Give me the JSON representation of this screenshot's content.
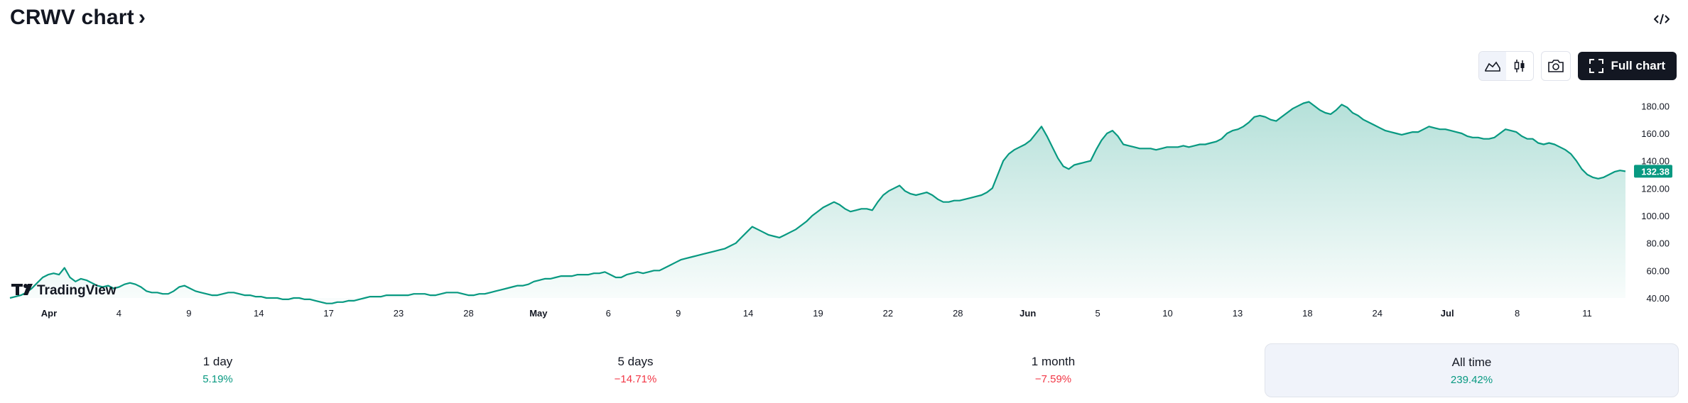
{
  "header": {
    "title": "CRWV chart",
    "chevron": "›"
  },
  "toolbar": {
    "area_icon": "area-chart-icon",
    "candle_icon": "candlestick-icon",
    "camera_icon": "camera-icon",
    "full_chart_label": "Full chart",
    "embed_icon": "code-embed-icon"
  },
  "watermark": {
    "text": "TradingView"
  },
  "colors": {
    "line": "#089981",
    "price_badge": "#089981",
    "positive": "#089981",
    "negative": "#f23645"
  },
  "periods": [
    {
      "label": "1 day",
      "value": "5.19%",
      "positive": true
    },
    {
      "label": "5 days",
      "value": "−14.71%",
      "positive": false
    },
    {
      "label": "1 month",
      "value": "−7.59%",
      "positive": false
    },
    {
      "label": "All time",
      "value": "239.42%",
      "positive": true,
      "active": true
    }
  ],
  "chart_data": {
    "type": "area",
    "ylim": [
      40,
      190
    ],
    "y_ticks": [
      "40.00",
      "60.00",
      "80.00",
      "100.00",
      "120.00",
      "140.00",
      "160.00",
      "180.00"
    ],
    "x_ticks": [
      {
        "label": "Apr",
        "bold": true
      },
      {
        "label": "4"
      },
      {
        "label": "9"
      },
      {
        "label": "14"
      },
      {
        "label": "17"
      },
      {
        "label": "23"
      },
      {
        "label": "28"
      },
      {
        "label": "May",
        "bold": true
      },
      {
        "label": "6"
      },
      {
        "label": "9"
      },
      {
        "label": "14"
      },
      {
        "label": "19"
      },
      {
        "label": "22"
      },
      {
        "label": "28"
      },
      {
        "label": "Jun",
        "bold": true
      },
      {
        "label": "5"
      },
      {
        "label": "10"
      },
      {
        "label": "13"
      },
      {
        "label": "18"
      },
      {
        "label": "24"
      },
      {
        "label": "Jul",
        "bold": true
      },
      {
        "label": "8"
      },
      {
        "label": "11"
      }
    ],
    "last_price": "132.38",
    "values": [
      40,
      41,
      42,
      44,
      47,
      51,
      55,
      57,
      58,
      57,
      62,
      55,
      52,
      54,
      53,
      51,
      49,
      48,
      49,
      47,
      48,
      50,
      51,
      50,
      48,
      45,
      44,
      44,
      43,
      43,
      45,
      48,
      49,
      47,
      45,
      44,
      43,
      42,
      42,
      43,
      44,
      44,
      43,
      42,
      42,
      41,
      41,
      40,
      40,
      40,
      39,
      39,
      40,
      40,
      39,
      39,
      38,
      37,
      36,
      36,
      37,
      37,
      38,
      38,
      39,
      40,
      41,
      41,
      41,
      42,
      42,
      42,
      42,
      42,
      43,
      43,
      43,
      42,
      42,
      43,
      44,
      44,
      44,
      43,
      42,
      42,
      43,
      43,
      44,
      45,
      46,
      47,
      48,
      49,
      49,
      50,
      52,
      53,
      54,
      54,
      55,
      56,
      56,
      56,
      57,
      57,
      57,
      58,
      58,
      59,
      57,
      55,
      55,
      57,
      58,
      59,
      58,
      59,
      60,
      60,
      62,
      64,
      66,
      68,
      69,
      70,
      71,
      72,
      73,
      74,
      75,
      76,
      78,
      80,
      84,
      88,
      92,
      90,
      88,
      86,
      85,
      84,
      86,
      88,
      90,
      93,
      96,
      100,
      103,
      106,
      108,
      110,
      108,
      105,
      103,
      104,
      105,
      105,
      104,
      110,
      115,
      118,
      120,
      122,
      118,
      116,
      115,
      116,
      117,
      115,
      112,
      110,
      110,
      111,
      111,
      112,
      113,
      114,
      115,
      117,
      120,
      130,
      140,
      145,
      148,
      150,
      152,
      155,
      160,
      165,
      158,
      150,
      142,
      136,
      134,
      137,
      138,
      139,
      140,
      148,
      155,
      160,
      162,
      158,
      152,
      151,
      150,
      149,
      149,
      149,
      148,
      149,
      150,
      150,
      150,
      151,
      150,
      151,
      152,
      152,
      153,
      154,
      156,
      160,
      162,
      163,
      165,
      168,
      172,
      173,
      172,
      170,
      169,
      172,
      175,
      178,
      180,
      182,
      183,
      180,
      177,
      175,
      174,
      177,
      181,
      179,
      175,
      173,
      170,
      168,
      166,
      164,
      162,
      161,
      160,
      159,
      160,
      161,
      161,
      163,
      165,
      164,
      163,
      163,
      162,
      161,
      160,
      158,
      157,
      157,
      156,
      156,
      157,
      160,
      163,
      162,
      161,
      158,
      156,
      156,
      153,
      152,
      153,
      152,
      150,
      148,
      145,
      140,
      134,
      130,
      128,
      127,
      128,
      130,
      132,
      133,
      132.38
    ]
  }
}
